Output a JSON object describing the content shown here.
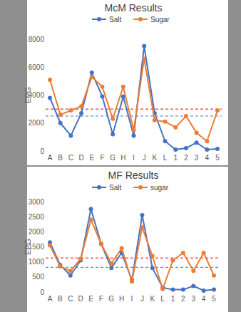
{
  "chart_data": [
    {
      "type": "line",
      "title": "McM Results",
      "y_label": "EPG",
      "categories": [
        "A",
        "B",
        "C",
        "D",
        "E",
        "F",
        "G",
        "H",
        "I",
        "J",
        "K",
        "L",
        "1",
        "2",
        "3",
        "4",
        "5"
      ],
      "series": [
        {
          "name": "Salt",
          "color": "#4472c4",
          "marker": "circle",
          "line_style": "solid",
          "values": [
            3800,
            2000,
            1100,
            2700,
            5600,
            3900,
            1200,
            3900,
            1100,
            7500,
            2700,
            700,
            100,
            200,
            600,
            100,
            150
          ]
        },
        {
          "name": "Sugar",
          "color": "#ed7d31",
          "marker": "circle",
          "line_style": "solid",
          "values": [
            5100,
            2600,
            2900,
            3200,
            5300,
            4600,
            2300,
            4600,
            1500,
            6600,
            2200,
            2100,
            1700,
            2500,
            1300,
            700,
            2900
          ]
        }
      ],
      "reference_lines": [
        {
          "value": 3000,
          "color": "#ff0000",
          "line_style": "dashed"
        },
        {
          "value": 2500,
          "color": "#4472c4",
          "line_style": "dashed"
        }
      ],
      "ylim": [
        0,
        8000
      ],
      "yticks": [
        0,
        2000,
        4000,
        6000,
        8000
      ],
      "grid": false,
      "legend": "top"
    },
    {
      "type": "line",
      "title": "MF Results",
      "y_label": "EPG",
      "categories": [
        "A",
        "B",
        "C",
        "D",
        "E",
        "F",
        "G",
        "H",
        "I",
        "J",
        "K",
        "L",
        "1",
        "2",
        "3",
        "4",
        "5"
      ],
      "series": [
        {
          "name": "Salt",
          "color": "#4472c4",
          "marker": "circle",
          "line_style": "solid",
          "values": [
            1650,
            900,
            550,
            1050,
            2750,
            1600,
            800,
            1300,
            400,
            2550,
            800,
            150,
            80,
            80,
            200,
            50,
            80
          ]
        },
        {
          "name": "sugar",
          "color": "#ed7d31",
          "marker": "circle",
          "line_style": "solid",
          "values": [
            1550,
            850,
            700,
            1100,
            2400,
            1600,
            950,
            1450,
            350,
            2150,
            1200,
            100,
            1050,
            1300,
            700,
            1300,
            550
          ]
        }
      ],
      "reference_lines": [
        {
          "value": 1130,
          "color": "#ff0000",
          "line_style": "dashed"
        },
        {
          "value": 820,
          "color": "#4472c4",
          "line_style": "dashed"
        }
      ],
      "ylim": [
        0,
        3000
      ],
      "yticks": [
        0,
        500,
        1000,
        1500,
        2000,
        2500,
        3000
      ],
      "grid": false,
      "legend": "top"
    }
  ]
}
